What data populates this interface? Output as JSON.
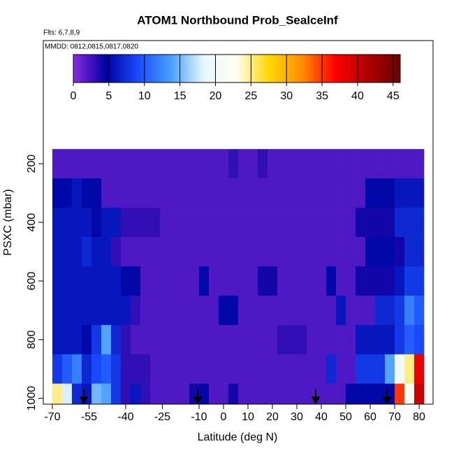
{
  "chart_data": {
    "type": "heatmap",
    "title": "ATOM1 Northbound Prob_SealceInf",
    "subtitle": "Flts: 6,7,8,9",
    "annotation": "MMDD: 0812,0815,0817,0820",
    "x_label": "Latitude (deg N)",
    "y_label": "PSXC (mbar)",
    "xlim": [
      -73.7,
      85.7
    ],
    "xticks": [
      -70,
      -55,
      -40,
      -25,
      -10,
      0,
      10,
      20,
      30,
      40,
      50,
      60,
      70,
      80
    ],
    "ylim": [
      1020,
      -220
    ],
    "yticks": [
      200,
      400,
      600,
      800,
      1000
    ],
    "x": [
      -68,
      -64,
      -60,
      -56,
      -52,
      -48,
      -44,
      -40,
      -36,
      -32,
      -28,
      -24,
      -20,
      -16,
      -12,
      -8,
      -4,
      0,
      4,
      8,
      12,
      16,
      20,
      24,
      28,
      32,
      36,
      40,
      44,
      48,
      52,
      56,
      60,
      64,
      68,
      72,
      76,
      80
    ],
    "y": [
      200,
      300,
      400,
      500,
      600,
      700,
      800,
      900,
      1000
    ],
    "values": [
      [
        2,
        2,
        2,
        2,
        2,
        2,
        2,
        2,
        2,
        2,
        2,
        2,
        2,
        2,
        2,
        2,
        2,
        2,
        3,
        2,
        2,
        3,
        2,
        2,
        2,
        2,
        2,
        2,
        2,
        2,
        2,
        2,
        2,
        2,
        2,
        2,
        2,
        2
      ],
      [
        5,
        5,
        6,
        5,
        5,
        2,
        2,
        2,
        2,
        2,
        2,
        2,
        2,
        2,
        2,
        2,
        2,
        2,
        2,
        2,
        2,
        2,
        2,
        2,
        2,
        2,
        2,
        2,
        2,
        2,
        2,
        2,
        5,
        5,
        5,
        6,
        6,
        6
      ],
      [
        6,
        6,
        6,
        6,
        5,
        6,
        6,
        3,
        3,
        3,
        3,
        2,
        2,
        2,
        2,
        2,
        2,
        2,
        2,
        2,
        2,
        2,
        2,
        2,
        2,
        2,
        2,
        2,
        2,
        2,
        2,
        4,
        4,
        4,
        4,
        7,
        7,
        7
      ],
      [
        6,
        6,
        6,
        7,
        6,
        6,
        3,
        2,
        2,
        2,
        2,
        2,
        2,
        2,
        2,
        2,
        2,
        2,
        2,
        2,
        2,
        2,
        2,
        2,
        2,
        2,
        2,
        2,
        2,
        2,
        2,
        2,
        5,
        5,
        5,
        4,
        7,
        7
      ],
      [
        6,
        6,
        6,
        6,
        6,
        6,
        6,
        5,
        5,
        2,
        2,
        2,
        2,
        2,
        2,
        5,
        2,
        2,
        2,
        2,
        2,
        4,
        4,
        2,
        2,
        2,
        2,
        2,
        5,
        2,
        2,
        4,
        4,
        4,
        4,
        6,
        8,
        8
      ],
      [
        6,
        6,
        6,
        6,
        6,
        6,
        6,
        6,
        3,
        2,
        2,
        2,
        2,
        2,
        2,
        2,
        2,
        5,
        5,
        2,
        2,
        2,
        2,
        2,
        2,
        2,
        2,
        2,
        2,
        6,
        2,
        2,
        2,
        7,
        7,
        8,
        12,
        10
      ],
      [
        6,
        6,
        6,
        5,
        8,
        14,
        7,
        3,
        2,
        2,
        2,
        2,
        2,
        2,
        2,
        2,
        2,
        2,
        2,
        2,
        2,
        2,
        2,
        3,
        3,
        3,
        2,
        2,
        2,
        2,
        2,
        6,
        6,
        6,
        6,
        8,
        10,
        9
      ],
      [
        8,
        10,
        12,
        7,
        9,
        10,
        8,
        3,
        3,
        3,
        2,
        2,
        2,
        2,
        2,
        2,
        2,
        2,
        2,
        2,
        2,
        2,
        2,
        2,
        2,
        2,
        2,
        2,
        7,
        2,
        2,
        8,
        8,
        8,
        14,
        20,
        25,
        38
      ],
      [
        25,
        18,
        7,
        6,
        15,
        14,
        8,
        3,
        6,
        3,
        2,
        2,
        2,
        2,
        4,
        5,
        2,
        2,
        4,
        2,
        2,
        2,
        2,
        2,
        2,
        2,
        2,
        2,
        2,
        2,
        5,
        5,
        5,
        5,
        5,
        35,
        22,
        40
      ]
    ],
    "colorbar": {
      "lim": [
        0,
        46
      ],
      "ticks": [
        0,
        5,
        10,
        15,
        20,
        25,
        30,
        35,
        40,
        45
      ],
      "colors": [
        "#8a2be2",
        "#0000a0",
        "#1a4cff",
        "#4aa0ff",
        "#e8f8ff",
        "#fffff0",
        "#ffd700",
        "#ff8c00",
        "#ff0000",
        "#b00000",
        "#6b0000"
      ]
    }
  }
}
